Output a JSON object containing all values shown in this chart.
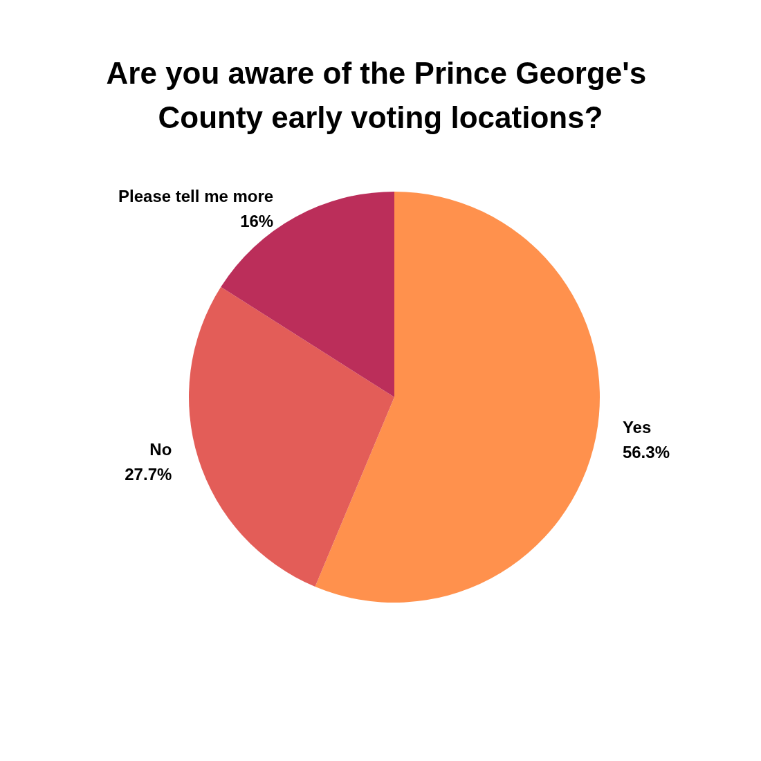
{
  "chart_data": {
    "type": "pie",
    "title": "Are you aware of the Prince George's County early voting locations?",
    "categories": [
      "Yes",
      "No",
      "Please tell me more"
    ],
    "values": [
      56.3,
      27.7,
      16
    ],
    "value_labels": [
      "56.3%",
      "27.7%",
      "16%"
    ],
    "colors": [
      "#ff914d",
      "#e35d58",
      "#bb2e5a"
    ],
    "legend": false
  }
}
